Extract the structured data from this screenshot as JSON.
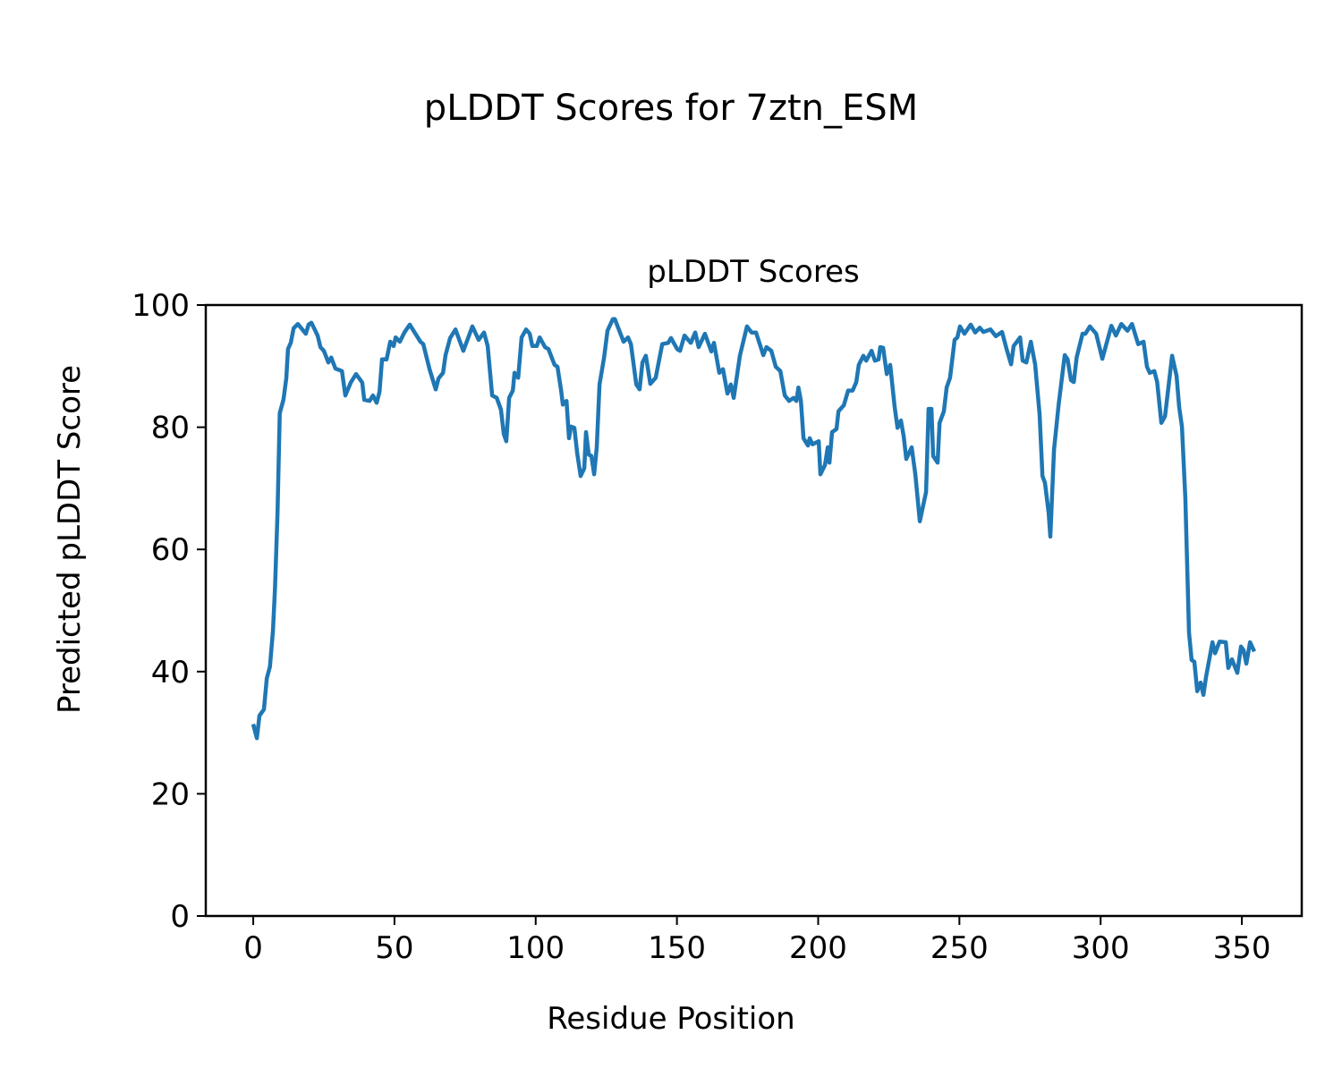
{
  "figure_title": "pLDDT Scores for 7ztn_ESM",
  "chart_data": {
    "type": "line",
    "title": "pLDDT Scores",
    "xlabel": "Residue Position",
    "ylabel": "Predicted pLDDT Score",
    "xlim": [
      -16.8,
      371.2
    ],
    "ylim": [
      0,
      100
    ],
    "xticks": [
      0,
      50,
      100,
      150,
      200,
      250,
      300,
      350
    ],
    "yticks": [
      0,
      20,
      40,
      60,
      80,
      100
    ],
    "grid": false,
    "series": [
      {
        "name": "pLDDT",
        "color": "#1f77b4",
        "x": [
          0,
          1.3,
          2.2,
          3.8,
          4.8,
          5.9,
          7,
          7.7,
          8.6,
          9.4,
          10.7,
          11.7,
          12.3,
          13.3,
          14.3,
          15.8,
          18.6,
          19.6,
          20.6,
          22.8,
          23.8,
          25,
          26.6,
          27.6,
          29.1,
          31.4,
          32.6,
          34.5,
          36.4,
          38.6,
          39.3,
          41.2,
          42.4,
          43.7,
          44.7,
          45.6,
          47.2,
          48.5,
          49.7,
          50.4,
          51.9,
          53.5,
          55.4,
          59.2,
          60.2,
          62.4,
          64.6,
          65.6,
          67.2,
          68.1,
          69.7,
          71.6,
          74.4,
          77.6,
          79.8,
          81.7,
          83,
          84.6,
          86.2,
          87.7,
          88.7,
          89.6,
          90.6,
          91.9,
          92.5,
          93.8,
          95,
          96.6,
          97.9,
          98.8,
          100.4,
          101.4,
          103.3,
          104.5,
          106.1,
          106.7,
          107.7,
          109,
          109.6,
          110.9,
          111.8,
          112.5,
          113.7,
          114.7,
          115.9,
          117.2,
          117.8,
          118.8,
          119.7,
          120.7,
          121.6,
          122.6,
          124.2,
          125.4,
          127.3,
          128,
          131.1,
          132.7,
          133.7,
          135.6,
          136.8,
          137.8,
          139,
          140.6,
          142.5,
          144.8,
          146.9,
          147.9,
          150.1,
          151.1,
          152.7,
          154.9,
          156.5,
          157.7,
          159.9,
          162.2,
          163.1,
          165,
          166.3,
          167.9,
          169.1,
          170.1,
          172.3,
          174.8,
          176.4,
          178,
          180.6,
          181.7,
          183.4,
          185,
          186.6,
          188.2,
          189.7,
          191.3,
          192.3,
          193,
          193.9,
          194.8,
          196.4,
          197,
          198,
          200.2,
          200.8,
          202.4,
          203.4,
          204,
          204.9,
          206.5,
          207.2,
          209.1,
          210.6,
          212.2,
          213.5,
          214.4,
          216,
          217,
          218.9,
          220.1,
          221.4,
          222,
          223,
          224.3,
          225.5,
          227.1,
          228.1,
          229.3,
          230.3,
          231.2,
          233.1,
          234.4,
          236,
          238.2,
          239.1,
          240.1,
          240.7,
          242.3,
          243,
          244.5,
          245.5,
          246.7,
          248.3,
          249.3,
          250.2,
          251.8,
          254,
          255.6,
          257.2,
          258.5,
          261,
          262.9,
          265.1,
          266.7,
          268.3,
          269.2,
          271.5,
          272.4,
          273.7,
          275.3,
          276.8,
          278.4,
          279.4,
          280.3,
          281.6,
          282.2,
          283.5,
          285.1,
          287.3,
          288.3,
          289.5,
          290.5,
          291.5,
          293.6,
          294.6,
          296.2,
          298.4,
          300.6,
          303.8,
          305.4,
          307.3,
          309.5,
          311.1,
          313.3,
          315.2,
          316.4,
          317.4,
          319,
          320,
          321.5,
          322.8,
          325.3,
          326.9,
          327.8,
          328.8,
          330,
          331.3,
          332.2,
          333.2,
          334.2,
          335.4,
          336.4,
          337.3,
          339.6,
          340.5,
          342.1,
          344.3,
          345.2,
          346.5,
          348.4,
          349.7,
          350.6,
          351.6,
          352.9,
          354.4
        ],
        "y": [
          31.4,
          29.1,
          32.8,
          33.8,
          38.9,
          40.8,
          46.7,
          53.7,
          66,
          82.3,
          84.5,
          88,
          92.8,
          93.8,
          96.2,
          96.9,
          95.3,
          96.8,
          97.1,
          95,
          93.1,
          92.5,
          90.6,
          91.4,
          89.6,
          89.2,
          85.2,
          87.3,
          88.7,
          87.3,
          84.5,
          84.3,
          85.2,
          84,
          85.8,
          91.1,
          91.1,
          94,
          93.3,
          94.7,
          94,
          95.5,
          96.8,
          94,
          93.6,
          89.5,
          86.2,
          88,
          88.9,
          91.8,
          94.6,
          96,
          92.5,
          96.5,
          94.3,
          95.5,
          93.3,
          85.2,
          84.8,
          82.9,
          78.9,
          77.7,
          84.8,
          86,
          88.9,
          88.1,
          94.7,
          96,
          95.3,
          93.3,
          93.3,
          94.7,
          93.1,
          92.8,
          90.9,
          90.2,
          89.9,
          86,
          83.7,
          84.3,
          78.2,
          80.1,
          79.9,
          75.7,
          72,
          73.3,
          79.2,
          75.5,
          75.3,
          72.3,
          76.7,
          87,
          91.4,
          95.8,
          97.7,
          97.7,
          94,
          94.7,
          93.6,
          87,
          86.2,
          90.6,
          91.7,
          87.1,
          88.1,
          93.6,
          93.8,
          94.6,
          92.8,
          92.5,
          95,
          93.8,
          95.5,
          93.1,
          95.3,
          92.4,
          93.8,
          88.9,
          89.5,
          85.5,
          87,
          84.8,
          91.7,
          96.5,
          95.5,
          95.5,
          91.8,
          93.1,
          92.5,
          89.9,
          89.2,
          85.2,
          84.3,
          84.8,
          84.3,
          86.5,
          84.3,
          78.2,
          77,
          78.2,
          77.2,
          77.7,
          72.3,
          73.8,
          76.7,
          74.2,
          79.2,
          79.7,
          82.6,
          83.6,
          86,
          86,
          87.4,
          90.2,
          91.7,
          90.9,
          92.5,
          90.9,
          91.1,
          93.1,
          93,
          88.7,
          90.2,
          83.3,
          79.9,
          81.1,
          78.5,
          74.8,
          76.7,
          72.3,
          64.6,
          69.4,
          83,
          83,
          75.3,
          74.2,
          80.7,
          82.6,
          86.5,
          88.1,
          94.3,
          94.7,
          96.5,
          95.3,
          96.8,
          95.5,
          96.3,
          95.6,
          96,
          94.9,
          95.6,
          92.8,
          90.3,
          93.3,
          94.7,
          90.9,
          90.6,
          94,
          90.3,
          82.1,
          72,
          70.9,
          66,
          62.1,
          76.3,
          83.6,
          91.8,
          91.1,
          87.7,
          87.4,
          91.4,
          95.3,
          95.3,
          96.5,
          95.3,
          91.2,
          96.6,
          95,
          96.9,
          95.8,
          96.9,
          93.6,
          94,
          89.9,
          88.9,
          89.2,
          87.4,
          80.7,
          81.8,
          91.7,
          88.4,
          83.3,
          80.1,
          68.4,
          46.4,
          41.9,
          41.6,
          36.8,
          38.2,
          36.2,
          39.1,
          44.8,
          43,
          44.9,
          44.8,
          40.6,
          42,
          39.8,
          44.1,
          43.5,
          41.3,
          44.8,
          43.3
        ]
      }
    ]
  }
}
